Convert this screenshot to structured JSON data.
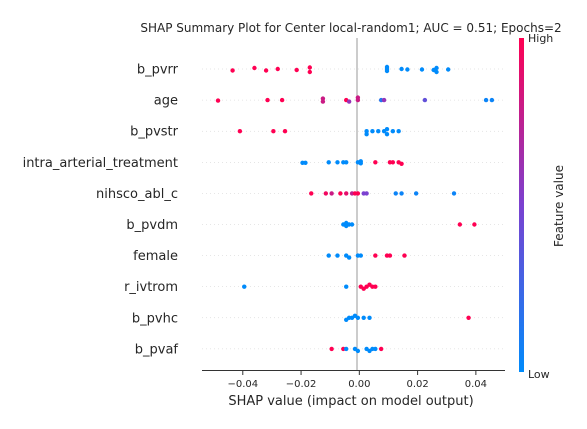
{
  "chart_data": {
    "type": "scatter",
    "title": "SHAP Summary Plot for Center local-random1; AUC = 0.51; Epochs=2",
    "xlabel": "SHAP value (impact on model output)",
    "xlim": [
      -0.054,
      0.05
    ],
    "xticks": [
      -0.04,
      -0.02,
      0.0,
      0.02,
      0.04
    ],
    "xtick_labels": [
      "−0.04",
      "−0.02",
      "0.00",
      "0.02",
      "0.04"
    ],
    "colorbar": {
      "label": "Feature value",
      "high_label": "High",
      "low_label": "Low",
      "low_color": "#008bfb",
      "high_color": "#ff0052"
    },
    "features": [
      "b_pvrr",
      "age",
      "b_pvstr",
      "intra_arterial_treatment",
      "nihsco_abl_c",
      "b_pvdm",
      "female",
      "r_ivtrom",
      "b_pvhc",
      "b_pvaf"
    ],
    "points": [
      [
        [
          -0.0435,
          1.0,
          0.3
        ],
        [
          -0.036,
          1.0,
          -0.2
        ],
        [
          -0.032,
          1.0,
          0.3
        ],
        [
          -0.028,
          1.0,
          0.0
        ],
        [
          -0.0215,
          1.0,
          0.2
        ],
        [
          -0.017,
          1.0,
          -0.3
        ],
        [
          -0.017,
          1.0,
          0.6
        ],
        [
          0.0095,
          0.0,
          -0.4
        ],
        [
          0.0095,
          0.0,
          0.4
        ],
        [
          0.0095,
          0.0,
          0.0
        ],
        [
          0.0145,
          0.0,
          0.0
        ],
        [
          0.0165,
          0.0,
          0.1
        ],
        [
          0.0215,
          0.0,
          0.1
        ],
        [
          0.0255,
          0.0,
          0.2
        ],
        [
          0.0265,
          0.0,
          -0.2
        ],
        [
          0.0265,
          0.0,
          0.6
        ],
        [
          0.0305,
          0.0,
          0.1
        ]
      ],
      [
        [
          -0.0485,
          1.0,
          0.1
        ],
        [
          -0.0315,
          1.0,
          0.0
        ],
        [
          -0.0265,
          1.0,
          0.0
        ],
        [
          -0.0125,
          0.8,
          0.3
        ],
        [
          -0.0125,
          0.8,
          -0.3
        ],
        [
          -0.0045,
          1.0,
          0.0
        ],
        [
          -0.0035,
          0.6,
          0.3
        ],
        [
          -0.0005,
          0.8,
          0.0
        ],
        [
          -0.0005,
          0.8,
          -0.5
        ],
        [
          0.0075,
          0.15,
          0.0
        ],
        [
          0.0085,
          0.6,
          0.0
        ],
        [
          0.0225,
          0.4,
          0.0
        ],
        [
          0.0435,
          0.05,
          0.0
        ],
        [
          0.0455,
          0.05,
          0.0
        ]
      ],
      [
        [
          -0.041,
          1.0,
          0.0
        ],
        [
          -0.0295,
          1.0,
          0.0
        ],
        [
          -0.0255,
          1.0,
          0.0
        ],
        [
          0.0025,
          0.0,
          0.6
        ],
        [
          0.0025,
          0.0,
          0.0
        ],
        [
          0.0045,
          0.0,
          0.0
        ],
        [
          0.0065,
          0.0,
          0.0
        ],
        [
          0.0085,
          0.0,
          0.0
        ],
        [
          0.0095,
          0.0,
          0.6
        ],
        [
          0.0095,
          0.0,
          -0.4
        ],
        [
          0.0115,
          0.0,
          0.0
        ],
        [
          0.0135,
          0.0,
          0.0
        ]
      ],
      [
        [
          -0.0195,
          0.0,
          0.1
        ],
        [
          -0.0185,
          0.0,
          0.1
        ],
        [
          -0.0105,
          0.0,
          0.0
        ],
        [
          -0.0075,
          0.0,
          0.0
        ],
        [
          -0.0055,
          0.0,
          0.0
        ],
        [
          -0.0045,
          0.0,
          0.0
        ],
        [
          -0.0005,
          0.0,
          0.0
        ],
        [
          0.0005,
          0.0,
          -0.2
        ],
        [
          0.0005,
          0.0,
          0.2
        ],
        [
          0.0055,
          1.0,
          0.0
        ],
        [
          0.0105,
          1.0,
          0.0
        ],
        [
          0.0115,
          1.0,
          0.0
        ],
        [
          0.0135,
          1.0,
          0.0
        ],
        [
          0.0145,
          1.0,
          0.3
        ]
      ],
      [
        [
          -0.0165,
          1.0,
          0.0
        ],
        [
          -0.0115,
          0.95,
          0.0
        ],
        [
          -0.0095,
          0.8,
          0.0
        ],
        [
          -0.0065,
          1.0,
          0.0
        ],
        [
          -0.0045,
          0.9,
          0.0
        ],
        [
          -0.0025,
          0.75,
          0.0
        ],
        [
          -0.0015,
          1.0,
          0.0
        ],
        [
          -0.0005,
          1.0,
          0.0
        ],
        [
          0.0015,
          0.5,
          0.0
        ],
        [
          0.0025,
          0.5,
          0.0
        ],
        [
          0.0125,
          0.05,
          0.0
        ],
        [
          0.0145,
          0.05,
          0.0
        ],
        [
          0.0195,
          0.05,
          0.0
        ],
        [
          0.0325,
          0.05,
          0.0
        ]
      ],
      [
        [
          -0.0055,
          0.0,
          0.0
        ],
        [
          -0.0045,
          0.0,
          0.3
        ],
        [
          -0.0045,
          0.0,
          -0.3
        ],
        [
          -0.0035,
          0.0,
          0.0
        ],
        [
          -0.0025,
          0.0,
          0.0
        ],
        [
          0.0345,
          1.0,
          0.0
        ],
        [
          0.0395,
          1.0,
          0.0
        ]
      ],
      [
        [
          -0.0105,
          0.0,
          0.0
        ],
        [
          -0.0075,
          0.0,
          0.0
        ],
        [
          -0.0045,
          0.0,
          0.0
        ],
        [
          -0.0035,
          0.0,
          0.4
        ],
        [
          -0.0005,
          0.0,
          0.0
        ],
        [
          0.0005,
          0.0,
          0.0
        ],
        [
          0.0055,
          1.0,
          0.0
        ],
        [
          0.0095,
          1.0,
          0.0
        ],
        [
          0.0105,
          1.0,
          0.0
        ],
        [
          0.0155,
          1.0,
          0.0
        ]
      ],
      [
        [
          -0.0395,
          0.0,
          0.0
        ],
        [
          -0.0045,
          0.0,
          0.0
        ],
        [
          0.0005,
          1.0,
          0.0
        ],
        [
          0.0015,
          1.0,
          0.4
        ],
        [
          0.0025,
          1.0,
          0.0
        ],
        [
          0.0035,
          1.0,
          -0.4
        ],
        [
          0.0045,
          1.0,
          0.0
        ],
        [
          0.0055,
          1.0,
          0.0
        ]
      ],
      [
        [
          -0.0045,
          0.0,
          0.4
        ],
        [
          -0.0035,
          0.0,
          0.0
        ],
        [
          -0.0025,
          0.0,
          0.0
        ],
        [
          -0.0015,
          0.0,
          -0.4
        ],
        [
          -0.0005,
          0.0,
          0.0
        ],
        [
          0.0015,
          0.0,
          0.0
        ],
        [
          0.0035,
          0.0,
          0.0
        ],
        [
          0.0375,
          1.0,
          0.0
        ]
      ],
      [
        [
          -0.0095,
          1.0,
          0.0
        ],
        [
          -0.0055,
          1.0,
          0.0
        ],
        [
          -0.0045,
          0.0,
          0.0
        ],
        [
          -0.0015,
          0.0,
          0.0
        ],
        [
          -0.0005,
          0.0,
          0.4
        ],
        [
          0.0025,
          0.0,
          0.0
        ],
        [
          0.0035,
          0.0,
          0.4
        ],
        [
          0.0045,
          0.0,
          0.0
        ],
        [
          0.0055,
          0.0,
          0.0
        ],
        [
          0.0075,
          1.0,
          0.0
        ]
      ]
    ]
  }
}
